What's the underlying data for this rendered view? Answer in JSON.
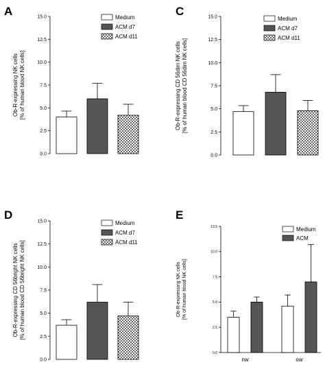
{
  "chart_data": [
    {
      "panel_letter": "A",
      "type": "bar",
      "ylabel_lines": [
        "Ob-R-expressing NK cells",
        "[% of human blood NK cells]"
      ],
      "ylim": [
        0,
        15
      ],
      "yticks": [
        "0.0",
        "2.5",
        "5.0",
        "7.5",
        "10.0",
        "12.5",
        "15.0"
      ],
      "legend": [
        "Medium",
        "ACM d7",
        "ACM d11"
      ],
      "series": [
        {
          "name": "Medium",
          "color": "#ffffff",
          "pattern": "none",
          "values": [
            4.0
          ],
          "errors": [
            0.65
          ]
        },
        {
          "name": "ACM d7",
          "color": "#555555",
          "pattern": "none",
          "values": [
            6.0
          ],
          "errors": [
            1.7
          ]
        },
        {
          "name": "ACM d11",
          "color": "#ffffff",
          "pattern": "check",
          "values": [
            4.2
          ],
          "errors": [
            1.2
          ]
        }
      ]
    },
    {
      "panel_letter": "C",
      "type": "bar",
      "ylabel_lines": [
        "Ob-R-expressing CD 56dim NK cells",
        "[% of human blood CD 56dim NK cells]"
      ],
      "ylim": [
        0,
        15
      ],
      "yticks": [
        "0.0",
        "2.5",
        "5.0",
        "7.5",
        "10.0",
        "12.5",
        "15.0"
      ],
      "legend": [
        "Medium",
        "ACM d7",
        "ACM d11"
      ],
      "series": [
        {
          "name": "Medium",
          "color": "#ffffff",
          "pattern": "none",
          "values": [
            4.7
          ],
          "errors": [
            0.65
          ]
        },
        {
          "name": "ACM d7",
          "color": "#555555",
          "pattern": "none",
          "values": [
            6.8
          ],
          "errors": [
            1.9
          ]
        },
        {
          "name": "ACM d11",
          "color": "#ffffff",
          "pattern": "check",
          "values": [
            4.8
          ],
          "errors": [
            1.1
          ]
        }
      ]
    },
    {
      "panel_letter": "D",
      "type": "bar",
      "ylabel_lines": [
        "Ob-R-expressing CD 56bright NK cells",
        "[% of human blood CD 56bright NK cells]"
      ],
      "ylim": [
        0,
        15
      ],
      "yticks": [
        "0.0",
        "2.5",
        "5.0",
        "7.5",
        "10.0",
        "12.5",
        "15.0"
      ],
      "legend": [
        "Medium",
        "ACM d7",
        "ACM d11"
      ],
      "series": [
        {
          "name": "Medium",
          "color": "#ffffff",
          "pattern": "none",
          "values": [
            3.7
          ],
          "errors": [
            0.6
          ]
        },
        {
          "name": "ACM d7",
          "color": "#555555",
          "pattern": "none",
          "values": [
            6.2
          ],
          "errors": [
            1.9
          ]
        },
        {
          "name": "ACM d11",
          "color": "#ffffff",
          "pattern": "check",
          "values": [
            4.7
          ],
          "errors": [
            1.5
          ]
        }
      ]
    },
    {
      "panel_letter": "E",
      "type": "bar",
      "ylabel_lines": [
        "Ob-R-expressing NK cells",
        "[% of human blood NK cells]"
      ],
      "ylim": [
        0,
        12.5
      ],
      "yticks": [
        "0.0",
        "2.5",
        "5.0",
        "7.5",
        "10.0",
        "12.5"
      ],
      "categories": [
        "nw",
        "ow"
      ],
      "legend": [
        "Medium",
        "ACM"
      ],
      "series": [
        {
          "name": "Medium",
          "color": "#ffffff",
          "pattern": "none",
          "values": [
            3.5,
            4.6
          ],
          "errors": [
            0.6,
            1.1
          ]
        },
        {
          "name": "ACM",
          "color": "#555555",
          "pattern": "none",
          "values": [
            5.0,
            7.0
          ],
          "errors": [
            0.5,
            3.7
          ]
        }
      ]
    }
  ]
}
